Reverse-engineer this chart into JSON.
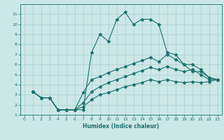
{
  "title": "",
  "xlabel": "Humidex (Indice chaleur)",
  "xlim": [
    -0.5,
    23.5
  ],
  "ylim": [
    1,
    12
  ],
  "xticks": [
    0,
    1,
    2,
    3,
    4,
    5,
    6,
    7,
    8,
    9,
    10,
    11,
    12,
    13,
    14,
    15,
    16,
    17,
    18,
    19,
    20,
    21,
    22,
    23
  ],
  "yticks": [
    1,
    2,
    3,
    4,
    5,
    6,
    7,
    8,
    9,
    10,
    11
  ],
  "bg_color": "#cce8e6",
  "grid_color": "#aed4d2",
  "line_color": "#1a7070",
  "lines": [
    {
      "x": [
        1,
        2,
        3,
        4,
        5,
        6,
        7,
        8,
        9,
        10,
        11,
        12,
        13,
        14,
        15,
        16,
        17,
        18,
        19,
        20,
        21,
        22,
        23
      ],
      "y": [
        3.3,
        2.7,
        2.7,
        1.5,
        1.5,
        1.5,
        1.5,
        7.2,
        9.0,
        8.3,
        10.5,
        11.2,
        10.0,
        10.5,
        10.5,
        10.0,
        7.2,
        7.0,
        6.0,
        5.3,
        5.3,
        4.7,
        4.5
      ]
    },
    {
      "x": [
        1,
        2,
        3,
        4,
        5,
        6,
        7,
        8,
        9,
        10,
        11,
        12,
        13,
        14,
        15,
        16,
        17,
        18,
        19,
        20,
        21,
        22,
        23
      ],
      "y": [
        3.3,
        2.7,
        2.7,
        1.5,
        1.5,
        1.5,
        3.2,
        4.5,
        4.8,
        5.2,
        5.5,
        5.8,
        6.1,
        6.4,
        6.7,
        6.3,
        7.0,
        6.5,
        6.0,
        6.0,
        5.5,
        4.7,
        4.5
      ]
    },
    {
      "x": [
        1,
        2,
        3,
        4,
        5,
        6,
        7,
        8,
        9,
        10,
        11,
        12,
        13,
        14,
        15,
        16,
        17,
        18,
        19,
        20,
        21,
        22,
        23
      ],
      "y": [
        3.3,
        2.7,
        2.7,
        1.5,
        1.5,
        1.5,
        2.2,
        3.3,
        3.8,
        4.2,
        4.5,
        4.8,
        5.1,
        5.4,
        5.7,
        5.5,
        5.8,
        5.5,
        5.3,
        5.5,
        5.0,
        4.5,
        4.5
      ]
    },
    {
      "x": [
        1,
        2,
        3,
        4,
        5,
        6,
        7,
        8,
        9,
        10,
        11,
        12,
        13,
        14,
        15,
        16,
        17,
        18,
        19,
        20,
        21,
        22,
        23
      ],
      "y": [
        3.3,
        2.7,
        2.7,
        1.5,
        1.5,
        1.5,
        1.8,
        2.5,
        3.0,
        3.2,
        3.5,
        3.8,
        4.0,
        4.2,
        4.5,
        4.3,
        4.5,
        4.3,
        4.2,
        4.3,
        4.2,
        4.3,
        4.5
      ]
    }
  ]
}
